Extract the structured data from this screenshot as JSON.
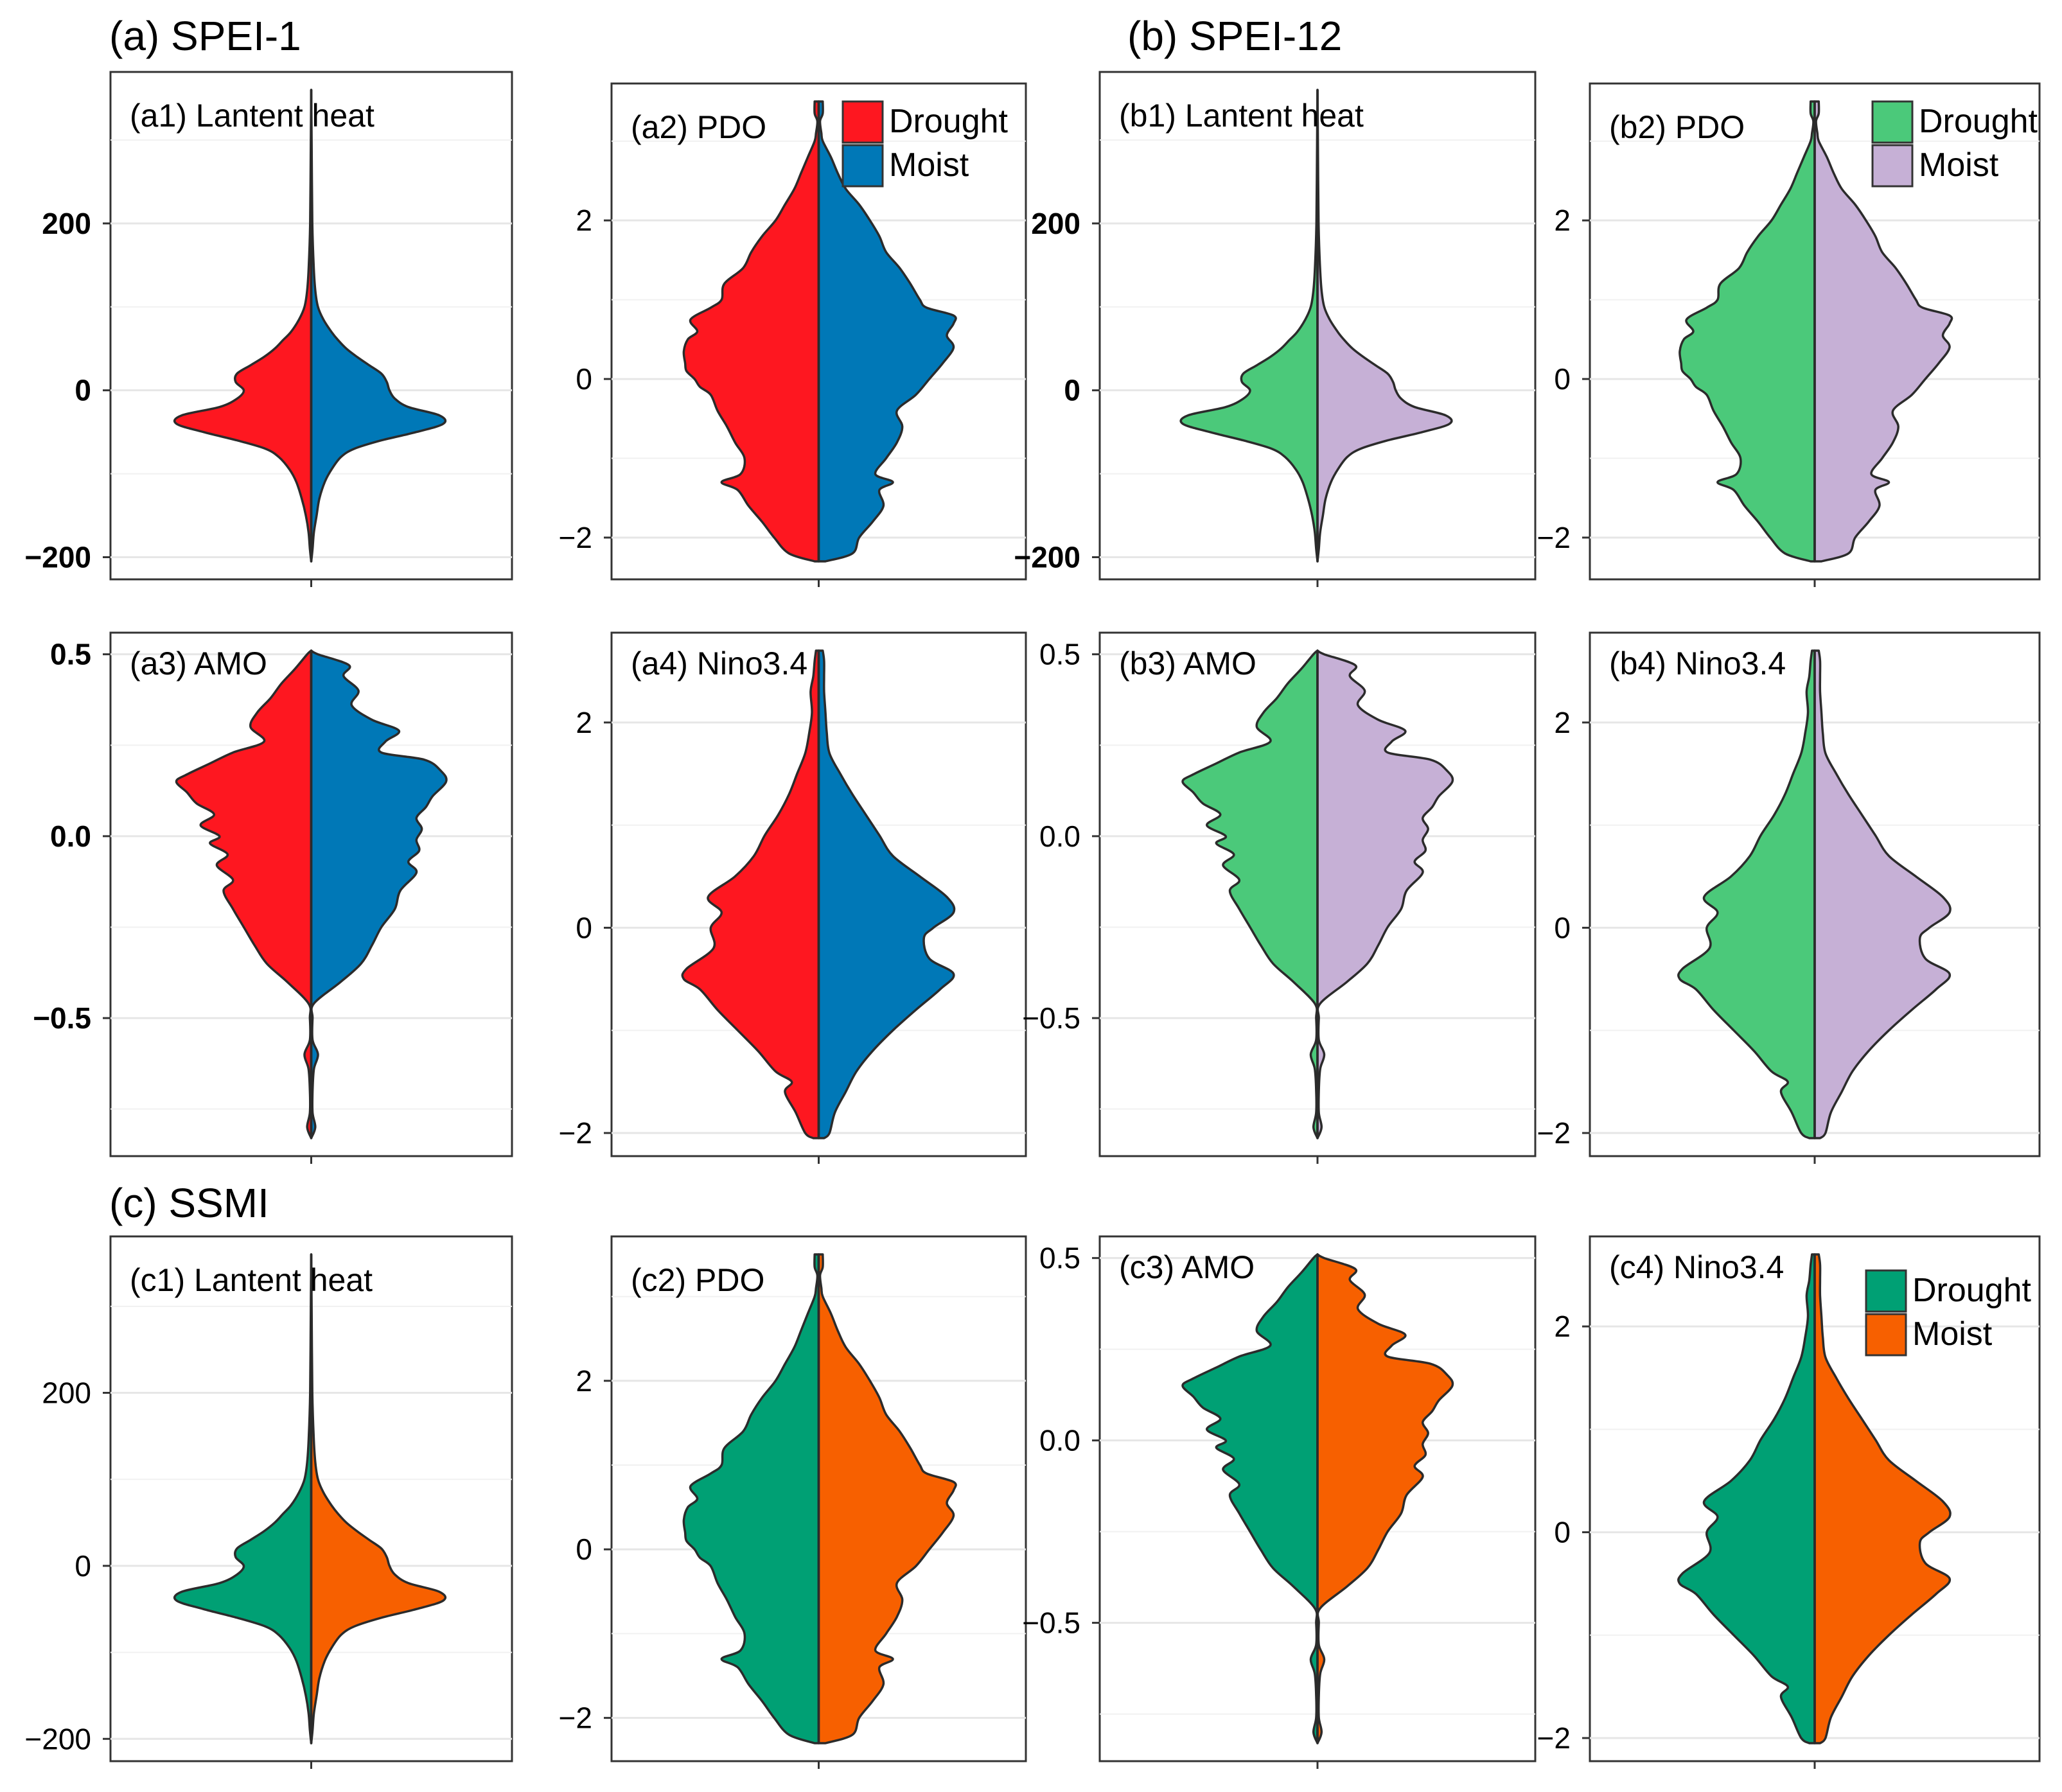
{
  "section_titles": [
    "(a) SPEI-1",
    "(b) SPEI-12",
    "(c) SSMI"
  ],
  "colors": {
    "spei1_drought": "#fe1720",
    "spei1_moist": "#0078b7",
    "spei12_drought": "#4bc97a",
    "spei12_moist": "#c6b0d6",
    "ssmi_drought": "#00a074",
    "ssmi_moist": "#f76000"
  },
  "legends": [
    {
      "panel": "a2",
      "labels": [
        "Drought",
        "Moist"
      ],
      "colors": [
        "#fe1720",
        "#0078b7"
      ]
    },
    {
      "panel": "b2",
      "labels": [
        "Drought",
        "Moist"
      ],
      "colors": [
        "#4bc97a",
        "#c6b0d6"
      ]
    },
    {
      "panel": "c4",
      "labels": [
        "Drought",
        "Moist"
      ],
      "colors": [
        "#00a074",
        "#f76000"
      ]
    }
  ],
  "chart_data": [
    {
      "id": "a1",
      "type": "split-violin",
      "group": "(a) SPEI-1",
      "title": "(a1) Lantent heat",
      "variable": "Lantent heat",
      "ylim": [
        -205,
        360
      ],
      "yticks": [
        -200,
        0,
        200
      ],
      "tick_labels": [
        "−200",
        "0",
        "200"
      ],
      "bold_ticks": true,
      "series": [
        {
          "name": "Drought",
          "color": "#fe1720",
          "profile": "latent_drought"
        },
        {
          "name": "Moist",
          "color": "#0078b7",
          "profile": "latent_moist"
        }
      ]
    },
    {
      "id": "a2",
      "type": "split-violin",
      "group": "(a) SPEI-1",
      "title": "(a2) PDO",
      "variable": "PDO",
      "ylim": [
        -2.3,
        3.5
      ],
      "yticks": [
        -2,
        0,
        2
      ],
      "tick_labels": [
        "−2",
        "0",
        "2"
      ],
      "bold_ticks": false,
      "series": [
        {
          "name": "Drought",
          "color": "#fe1720",
          "profile": "pdo_drought"
        },
        {
          "name": "Moist",
          "color": "#0078b7",
          "profile": "pdo_moist"
        }
      ]
    },
    {
      "id": "b1",
      "type": "split-violin",
      "group": "(b) SPEI-12",
      "title": "(b1) Lantent heat",
      "variable": "Lantent heat",
      "ylim": [
        -205,
        360
      ],
      "yticks": [
        -200,
        0,
        200
      ],
      "tick_labels": [
        "−200",
        "0",
        "200"
      ],
      "bold_ticks": true,
      "series": [
        {
          "name": "Drought",
          "color": "#4bc97a",
          "profile": "latent_drought"
        },
        {
          "name": "Moist",
          "color": "#c6b0d6",
          "profile": "latent_moist"
        }
      ]
    },
    {
      "id": "b2",
      "type": "split-violin",
      "group": "(b) SPEI-12",
      "title": "(b2) PDO",
      "variable": "PDO",
      "ylim": [
        -2.3,
        3.5
      ],
      "yticks": [
        -2,
        0,
        2
      ],
      "tick_labels": [
        "−2",
        "0",
        "2"
      ],
      "bold_ticks": false,
      "series": [
        {
          "name": "Drought",
          "color": "#4bc97a",
          "profile": "pdo_drought"
        },
        {
          "name": "Moist",
          "color": "#c6b0d6",
          "profile": "pdo_moist"
        }
      ]
    },
    {
      "id": "a3",
      "type": "split-violin",
      "group": "(a) SPEI-1",
      "title": "(a3) AMO",
      "variable": "AMO",
      "ylim": [
        -0.83,
        0.51
      ],
      "yticks": [
        -0.5,
        0.0,
        0.5
      ],
      "tick_labels": [
        "−0.5",
        "0.0",
        "0.5"
      ],
      "bold_ticks": true,
      "series": [
        {
          "name": "Drought",
          "color": "#fe1720",
          "profile": "amo_drought"
        },
        {
          "name": "Moist",
          "color": "#0078b7",
          "profile": "amo_moist"
        }
      ]
    },
    {
      "id": "a4",
      "type": "split-violin",
      "group": "(a) SPEI-1",
      "title": "(a4) Nino3.4",
      "variable": "Nino3.4",
      "ylim": [
        -2.05,
        2.7
      ],
      "yticks": [
        -2,
        0,
        2
      ],
      "tick_labels": [
        "−2",
        "0",
        "2"
      ],
      "bold_ticks": false,
      "series": [
        {
          "name": "Drought",
          "color": "#fe1720",
          "profile": "nino_drought"
        },
        {
          "name": "Moist",
          "color": "#0078b7",
          "profile": "nino_moist"
        }
      ]
    },
    {
      "id": "b3",
      "type": "split-violin",
      "group": "(b) SPEI-12",
      "title": "(b3) AMO",
      "variable": "AMO",
      "ylim": [
        -0.83,
        0.51
      ],
      "yticks": [
        -0.5,
        0.0,
        0.5
      ],
      "tick_labels": [
        "−0.5",
        "0.0",
        "0.5"
      ],
      "bold_ticks": false,
      "series": [
        {
          "name": "Drought",
          "color": "#4bc97a",
          "profile": "amo_drought"
        },
        {
          "name": "Moist",
          "color": "#c6b0d6",
          "profile": "amo_moist"
        }
      ]
    },
    {
      "id": "b4",
      "type": "split-violin",
      "group": "(b) SPEI-12",
      "title": "(b4) Nino3.4",
      "variable": "Nino3.4",
      "ylim": [
        -2.05,
        2.7
      ],
      "yticks": [
        -2,
        0,
        2
      ],
      "tick_labels": [
        "−2",
        "0",
        "2"
      ],
      "bold_ticks": false,
      "series": [
        {
          "name": "Drought",
          "color": "#4bc97a",
          "profile": "nino_drought"
        },
        {
          "name": "Moist",
          "color": "#c6b0d6",
          "profile": "nino_moist"
        }
      ]
    },
    {
      "id": "c1",
      "type": "split-violin",
      "group": "(c) SSMI",
      "title": "(c1) Lantent heat",
      "variable": "Lantent heat",
      "ylim": [
        -205,
        360
      ],
      "yticks": [
        -200,
        0,
        200
      ],
      "tick_labels": [
        "−200",
        "0",
        "200"
      ],
      "bold_ticks": false,
      "series": [
        {
          "name": "Drought",
          "color": "#00a074",
          "profile": "latent_drought"
        },
        {
          "name": "Moist",
          "color": "#f76000",
          "profile": "latent_moist"
        }
      ]
    },
    {
      "id": "c2",
      "type": "split-violin",
      "group": "(c) SSMI",
      "title": "(c2) PDO",
      "variable": "PDO",
      "ylim": [
        -2.3,
        3.5
      ],
      "yticks": [
        -2,
        0,
        2
      ],
      "tick_labels": [
        "−2",
        "0",
        "2"
      ],
      "bold_ticks": false,
      "series": [
        {
          "name": "Drought",
          "color": "#00a074",
          "profile": "pdo_drought"
        },
        {
          "name": "Moist",
          "color": "#f76000",
          "profile": "pdo_moist"
        }
      ]
    },
    {
      "id": "c3",
      "type": "split-violin",
      "group": "(c) SSMI",
      "title": "(c3) AMO",
      "variable": "AMO",
      "ylim": [
        -0.83,
        0.51
      ],
      "yticks": [
        -0.5,
        0.0,
        0.5
      ],
      "tick_labels": [
        "−0.5",
        "0.0",
        "0.5"
      ],
      "bold_ticks": false,
      "series": [
        {
          "name": "Drought",
          "color": "#00a074",
          "profile": "amo_drought"
        },
        {
          "name": "Moist",
          "color": "#f76000",
          "profile": "amo_moist"
        }
      ]
    },
    {
      "id": "c4",
      "type": "split-violin",
      "group": "(c) SSMI",
      "title": "(c4) Nino3.4",
      "variable": "Nino3.4",
      "ylim": [
        -2.05,
        2.7
      ],
      "yticks": [
        -2,
        0,
        2
      ],
      "tick_labels": [
        "−2",
        "0",
        "2"
      ],
      "bold_ticks": false,
      "series": [
        {
          "name": "Drought",
          "color": "#00a074",
          "profile": "nino_drought"
        },
        {
          "name": "Moist",
          "color": "#f76000",
          "profile": "nino_moist"
        }
      ]
    }
  ],
  "density_profiles": {
    "latent_drought": [
      [
        -205,
        0.0
      ],
      [
        -190,
        0.01
      ],
      [
        -170,
        0.02
      ],
      [
        -150,
        0.04
      ],
      [
        -130,
        0.07
      ],
      [
        -110,
        0.11
      ],
      [
        -95,
        0.16
      ],
      [
        -80,
        0.24
      ],
      [
        -70,
        0.34
      ],
      [
        -60,
        0.55
      ],
      [
        -50,
        0.8
      ],
      [
        -40,
        1.0
      ],
      [
        -30,
        0.96
      ],
      [
        -20,
        0.68
      ],
      [
        -10,
        0.55
      ],
      [
        0,
        0.5
      ],
      [
        10,
        0.56
      ],
      [
        20,
        0.55
      ],
      [
        30,
        0.45
      ],
      [
        40,
        0.35
      ],
      [
        50,
        0.27
      ],
      [
        60,
        0.21
      ],
      [
        70,
        0.15
      ],
      [
        85,
        0.09
      ],
      [
        100,
        0.05
      ],
      [
        120,
        0.03
      ],
      [
        150,
        0.018
      ],
      [
        200,
        0.008
      ],
      [
        280,
        0.004
      ],
      [
        360,
        0.0
      ]
    ],
    "latent_moist": [
      [
        -205,
        0.0
      ],
      [
        -190,
        0.01
      ],
      [
        -170,
        0.02
      ],
      [
        -150,
        0.04
      ],
      [
        -130,
        0.06
      ],
      [
        -110,
        0.1
      ],
      [
        -95,
        0.15
      ],
      [
        -80,
        0.22
      ],
      [
        -70,
        0.32
      ],
      [
        -60,
        0.52
      ],
      [
        -50,
        0.78
      ],
      [
        -40,
        0.98
      ],
      [
        -30,
        0.95
      ],
      [
        -20,
        0.72
      ],
      [
        -10,
        0.62
      ],
      [
        0,
        0.58
      ],
      [
        10,
        0.56
      ],
      [
        20,
        0.52
      ],
      [
        30,
        0.43
      ],
      [
        40,
        0.34
      ],
      [
        50,
        0.26
      ],
      [
        60,
        0.2
      ],
      [
        70,
        0.15
      ],
      [
        85,
        0.09
      ],
      [
        100,
        0.05
      ],
      [
        120,
        0.03
      ],
      [
        150,
        0.018
      ],
      [
        200,
        0.008
      ],
      [
        280,
        0.004
      ],
      [
        360,
        0.0
      ]
    ],
    "pdo_drought": [
      [
        -2.3,
        0.03
      ],
      [
        -2.2,
        0.22
      ],
      [
        -2.0,
        0.33
      ],
      [
        -1.8,
        0.42
      ],
      [
        -1.6,
        0.52
      ],
      [
        -1.4,
        0.6
      ],
      [
        -1.3,
        0.72
      ],
      [
        -1.2,
        0.58
      ],
      [
        -1.0,
        0.55
      ],
      [
        -0.8,
        0.62
      ],
      [
        -0.6,
        0.68
      ],
      [
        -0.4,
        0.75
      ],
      [
        -0.2,
        0.8
      ],
      [
        -0.1,
        0.88
      ],
      [
        0.0,
        0.92
      ],
      [
        0.1,
        0.98
      ],
      [
        0.2,
        0.99
      ],
      [
        0.35,
        1.0
      ],
      [
        0.5,
        0.97
      ],
      [
        0.6,
        0.9
      ],
      [
        0.75,
        0.95
      ],
      [
        0.9,
        0.8
      ],
      [
        1.0,
        0.72
      ],
      [
        1.2,
        0.7
      ],
      [
        1.4,
        0.56
      ],
      [
        1.6,
        0.5
      ],
      [
        1.8,
        0.42
      ],
      [
        2.0,
        0.32
      ],
      [
        2.2,
        0.25
      ],
      [
        2.4,
        0.18
      ],
      [
        2.6,
        0.13
      ],
      [
        2.8,
        0.08
      ],
      [
        3.0,
        0.03
      ],
      [
        3.1,
        0.02
      ],
      [
        3.25,
        0.01
      ],
      [
        3.35,
        0.03
      ],
      [
        3.5,
        0.03
      ]
    ],
    "pdo_moist": [
      [
        -2.3,
        0.05
      ],
      [
        -2.2,
        0.25
      ],
      [
        -2.0,
        0.3
      ],
      [
        -1.8,
        0.4
      ],
      [
        -1.6,
        0.48
      ],
      [
        -1.4,
        0.45
      ],
      [
        -1.3,
        0.55
      ],
      [
        -1.2,
        0.42
      ],
      [
        -1.0,
        0.5
      ],
      [
        -0.8,
        0.58
      ],
      [
        -0.6,
        0.62
      ],
      [
        -0.4,
        0.58
      ],
      [
        -0.2,
        0.72
      ],
      [
        0.0,
        0.82
      ],
      [
        0.2,
        0.92
      ],
      [
        0.4,
        1.0
      ],
      [
        0.55,
        0.95
      ],
      [
        0.7,
        1.0
      ],
      [
        0.8,
        1.0
      ],
      [
        0.9,
        0.8
      ],
      [
        1.0,
        0.75
      ],
      [
        1.2,
        0.68
      ],
      [
        1.4,
        0.6
      ],
      [
        1.6,
        0.5
      ],
      [
        1.8,
        0.45
      ],
      [
        2.0,
        0.38
      ],
      [
        2.2,
        0.3
      ],
      [
        2.4,
        0.2
      ],
      [
        2.6,
        0.14
      ],
      [
        2.8,
        0.09
      ],
      [
        3.0,
        0.03
      ],
      [
        3.1,
        0.02
      ],
      [
        3.25,
        0.01
      ],
      [
        3.35,
        0.03
      ],
      [
        3.5,
        0.03
      ]
    ],
    "amo_drought": [
      [
        -0.83,
        0.0
      ],
      [
        -0.8,
        0.03
      ],
      [
        -0.76,
        0.01
      ],
      [
        -0.7,
        0.01
      ],
      [
        -0.64,
        0.02
      ],
      [
        -0.6,
        0.05
      ],
      [
        -0.56,
        0.01
      ],
      [
        -0.5,
        0.01
      ],
      [
        -0.46,
        0.02
      ],
      [
        -0.4,
        0.18
      ],
      [
        -0.35,
        0.33
      ],
      [
        -0.3,
        0.42
      ],
      [
        -0.25,
        0.5
      ],
      [
        -0.2,
        0.58
      ],
      [
        -0.15,
        0.65
      ],
      [
        -0.12,
        0.58
      ],
      [
        -0.08,
        0.7
      ],
      [
        -0.05,
        0.62
      ],
      [
        -0.02,
        0.75
      ],
      [
        0.0,
        0.68
      ],
      [
        0.03,
        0.82
      ],
      [
        0.06,
        0.72
      ],
      [
        0.09,
        0.85
      ],
      [
        0.12,
        0.92
      ],
      [
        0.15,
        1.0
      ],
      [
        0.17,
        0.92
      ],
      [
        0.2,
        0.75
      ],
      [
        0.23,
        0.58
      ],
      [
        0.26,
        0.35
      ],
      [
        0.3,
        0.45
      ],
      [
        0.34,
        0.4
      ],
      [
        0.38,
        0.3
      ],
      [
        0.42,
        0.22
      ],
      [
        0.46,
        0.12
      ],
      [
        0.5,
        0.03
      ],
      [
        0.51,
        0.0
      ]
    ],
    "amo_moist": [
      [
        -0.83,
        0.0
      ],
      [
        -0.8,
        0.03
      ],
      [
        -0.76,
        0.01
      ],
      [
        -0.7,
        0.01
      ],
      [
        -0.64,
        0.02
      ],
      [
        -0.6,
        0.05
      ],
      [
        -0.56,
        0.01
      ],
      [
        -0.5,
        0.01
      ],
      [
        -0.46,
        0.02
      ],
      [
        -0.4,
        0.22
      ],
      [
        -0.35,
        0.37
      ],
      [
        -0.3,
        0.45
      ],
      [
        -0.25,
        0.52
      ],
      [
        -0.2,
        0.62
      ],
      [
        -0.15,
        0.66
      ],
      [
        -0.1,
        0.78
      ],
      [
        -0.07,
        0.72
      ],
      [
        -0.04,
        0.8
      ],
      [
        -0.01,
        0.78
      ],
      [
        0.02,
        0.82
      ],
      [
        0.05,
        0.78
      ],
      [
        0.08,
        0.85
      ],
      [
        0.11,
        0.9
      ],
      [
        0.15,
        1.0
      ],
      [
        0.18,
        0.96
      ],
      [
        0.21,
        0.84
      ],
      [
        0.23,
        0.52
      ],
      [
        0.26,
        0.55
      ],
      [
        0.29,
        0.65
      ],
      [
        0.32,
        0.45
      ],
      [
        0.36,
        0.3
      ],
      [
        0.4,
        0.35
      ],
      [
        0.44,
        0.24
      ],
      [
        0.47,
        0.28
      ],
      [
        0.5,
        0.05
      ],
      [
        0.51,
        0.0
      ]
    ],
    "nino_drought": [
      [
        -2.05,
        0.04
      ],
      [
        -2.0,
        0.1
      ],
      [
        -1.8,
        0.17
      ],
      [
        -1.6,
        0.25
      ],
      [
        -1.5,
        0.2
      ],
      [
        -1.4,
        0.32
      ],
      [
        -1.2,
        0.45
      ],
      [
        -1.0,
        0.6
      ],
      [
        -0.8,
        0.75
      ],
      [
        -0.6,
        0.88
      ],
      [
        -0.5,
        1.0
      ],
      [
        -0.4,
        0.98
      ],
      [
        -0.2,
        0.78
      ],
      [
        0.0,
        0.8
      ],
      [
        0.15,
        0.72
      ],
      [
        0.3,
        0.82
      ],
      [
        0.5,
        0.62
      ],
      [
        0.7,
        0.48
      ],
      [
        0.9,
        0.4
      ],
      [
        1.1,
        0.3
      ],
      [
        1.3,
        0.22
      ],
      [
        1.5,
        0.16
      ],
      [
        1.7,
        0.1
      ],
      [
        1.9,
        0.07
      ],
      [
        2.1,
        0.05
      ],
      [
        2.3,
        0.06
      ],
      [
        2.45,
        0.04
      ],
      [
        2.6,
        0.03
      ],
      [
        2.7,
        0.02
      ]
    ],
    "nino_moist": [
      [
        -2.05,
        0.04
      ],
      [
        -2.0,
        0.08
      ],
      [
        -1.8,
        0.12
      ],
      [
        -1.6,
        0.2
      ],
      [
        -1.4,
        0.28
      ],
      [
        -1.2,
        0.4
      ],
      [
        -1.0,
        0.55
      ],
      [
        -0.8,
        0.72
      ],
      [
        -0.6,
        0.9
      ],
      [
        -0.45,
        1.0
      ],
      [
        -0.3,
        0.82
      ],
      [
        -0.1,
        0.78
      ],
      [
        0.0,
        0.85
      ],
      [
        0.15,
        1.0
      ],
      [
        0.3,
        0.95
      ],
      [
        0.5,
        0.75
      ],
      [
        0.7,
        0.55
      ],
      [
        0.9,
        0.45
      ],
      [
        1.1,
        0.35
      ],
      [
        1.3,
        0.25
      ],
      [
        1.5,
        0.16
      ],
      [
        1.7,
        0.08
      ],
      [
        1.9,
        0.06
      ],
      [
        2.1,
        0.05
      ],
      [
        2.3,
        0.04
      ],
      [
        2.45,
        0.04
      ],
      [
        2.6,
        0.04
      ],
      [
        2.7,
        0.03
      ]
    ]
  }
}
